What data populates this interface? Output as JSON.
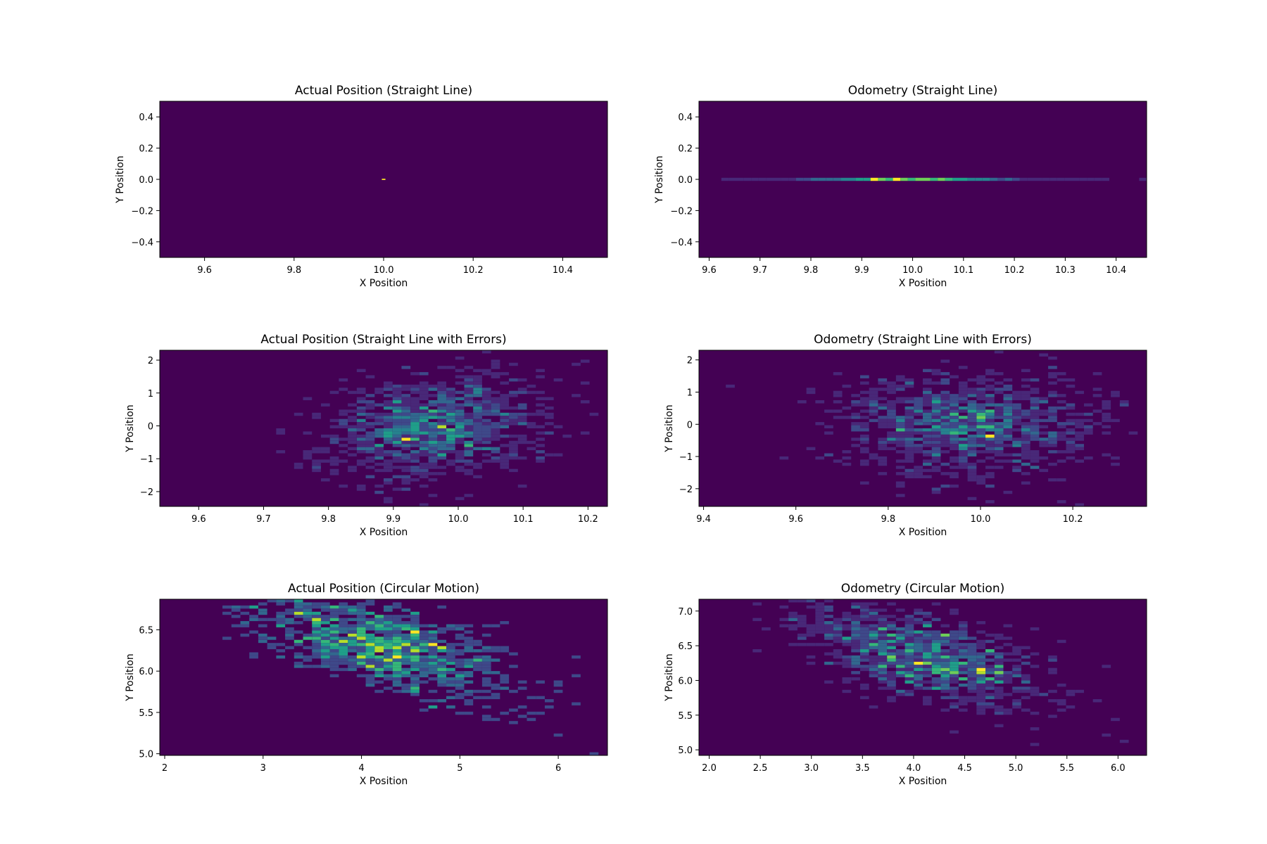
{
  "colors": {
    "background": "#440154",
    "viridis": [
      "#440154",
      "#482878",
      "#3e4989",
      "#31688e",
      "#26828e",
      "#1f9e89",
      "#35b779",
      "#6ece58",
      "#b5de2b",
      "#fde725"
    ]
  },
  "chart_data": [
    {
      "type": "heatmap",
      "title": "Actual Position (Straight Line)",
      "xlabel": "X Position",
      "ylabel": "Y Position",
      "xlim": [
        9.5,
        10.5
      ],
      "ylim": [
        -0.5,
        0.5
      ],
      "xticks": [
        9.6,
        9.8,
        10.0,
        10.2,
        10.4
      ],
      "yticks": [
        -0.4,
        -0.2,
        0.0,
        0.2,
        0.4
      ],
      "xtick_labels": [
        "9.6",
        "9.8",
        "10.0",
        "10.2",
        "10.4"
      ],
      "ytick_labels": [
        "−0.4",
        "−0.2",
        "0.0",
        "0.2",
        "0.4"
      ],
      "distribution": {
        "kind": "point",
        "x": 10.0,
        "y": 0.0
      },
      "bins": [
        50,
        50
      ]
    },
    {
      "type": "heatmap",
      "title": "Odometry (Straight Line)",
      "xlabel": "X Position",
      "ylabel": "Y Position",
      "xlim": [
        9.58,
        10.46
      ],
      "ylim": [
        -0.5,
        0.5
      ],
      "xticks": [
        9.6,
        9.7,
        9.8,
        9.9,
        10.0,
        10.1,
        10.2,
        10.3,
        10.4
      ],
      "yticks": [
        -0.4,
        -0.2,
        0.0,
        0.2,
        0.4
      ],
      "xtick_labels": [
        "9.6",
        "9.7",
        "9.8",
        "9.9",
        "10.0",
        "10.1",
        "10.2",
        "10.3",
        "10.4"
      ],
      "ytick_labels": [
        "−0.4",
        "−0.2",
        "0.0",
        "0.2",
        "0.4"
      ],
      "distribution": {
        "kind": "line",
        "x_mean": 10.0,
        "x_sd": 0.12,
        "y": 0.0
      },
      "bins": [
        50,
        50
      ]
    },
    {
      "type": "heatmap",
      "title": "Actual Position (Straight Line with Errors)",
      "xlabel": "X Position",
      "ylabel": "Y Position",
      "xlim": [
        9.54,
        10.23
      ],
      "ylim": [
        -2.45,
        2.3
      ],
      "xticks": [
        9.6,
        9.7,
        9.8,
        9.9,
        10.0,
        10.1,
        10.2
      ],
      "yticks": [
        -2,
        -1,
        0,
        1,
        2
      ],
      "xtick_labels": [
        "9.6",
        "9.7",
        "9.8",
        "9.9",
        "10.0",
        "10.1",
        "10.2"
      ],
      "ytick_labels": [
        "−2",
        "−1",
        "0",
        "1",
        "2"
      ],
      "distribution": {
        "kind": "gaussian",
        "x_mean": 9.96,
        "x_sd": 0.085,
        "y_mean": 0.0,
        "y_sd": 0.75,
        "cov": 0.018
      },
      "bins": [
        50,
        50
      ]
    },
    {
      "type": "heatmap",
      "title": "Odometry (Straight Line with Errors)",
      "xlabel": "X Position",
      "ylabel": "Y Position",
      "xlim": [
        9.39,
        10.36
      ],
      "ylim": [
        -2.55,
        2.3
      ],
      "xticks": [
        9.4,
        9.6,
        9.8,
        10.0,
        10.2
      ],
      "yticks": [
        -2,
        -1,
        0,
        1,
        2
      ],
      "xtick_labels": [
        "9.4",
        "9.6",
        "9.8",
        "10.0",
        "10.2"
      ],
      "ytick_labels": [
        "−2",
        "−1",
        "0",
        "1",
        "2"
      ],
      "distribution": {
        "kind": "gaussian",
        "x_mean": 9.98,
        "x_sd": 0.14,
        "y_mean": 0.0,
        "y_sd": 0.8,
        "cov": 0.0
      },
      "bins": [
        50,
        50
      ]
    },
    {
      "type": "heatmap",
      "title": "Actual Position (Circular Motion)",
      "xlabel": "X Position",
      "ylabel": "Y Position",
      "xlim": [
        1.95,
        6.5
      ],
      "ylim": [
        4.98,
        6.87
      ],
      "xticks": [
        2,
        3,
        4,
        5,
        6
      ],
      "yticks": [
        5.0,
        5.5,
        6.0,
        6.5
      ],
      "xtick_labels": [
        "2",
        "3",
        "4",
        "5",
        "6"
      ],
      "ytick_labels": [
        "5.0",
        "5.5",
        "6.0",
        "6.5"
      ],
      "distribution": {
        "kind": "gaussian",
        "x_mean": 4.2,
        "x_sd": 0.65,
        "y_mean": 6.3,
        "y_sd": 0.25,
        "cov": -0.13
      },
      "bins": [
        50,
        50
      ]
    },
    {
      "type": "heatmap",
      "title": "Odometry (Circular Motion)",
      "xlabel": "X Position",
      "ylabel": "Y Position",
      "xlim": [
        1.9,
        6.28
      ],
      "ylim": [
        4.92,
        7.17
      ],
      "xticks": [
        2.0,
        2.5,
        3.0,
        3.5,
        4.0,
        4.5,
        5.0,
        5.5,
        6.0
      ],
      "yticks": [
        5.0,
        5.5,
        6.0,
        6.5,
        7.0
      ],
      "xtick_labels": [
        "2.0",
        "2.5",
        "3.0",
        "3.5",
        "4.0",
        "4.5",
        "5.0",
        "5.5",
        "6.0"
      ],
      "ytick_labels": [
        "5.0",
        "5.5",
        "6.0",
        "6.5",
        "7.0"
      ],
      "distribution": {
        "kind": "gaussian",
        "x_mean": 4.1,
        "x_sd": 0.6,
        "y_mean": 6.35,
        "y_sd": 0.3,
        "cov": -0.12
      },
      "bins": [
        50,
        50
      ]
    }
  ]
}
